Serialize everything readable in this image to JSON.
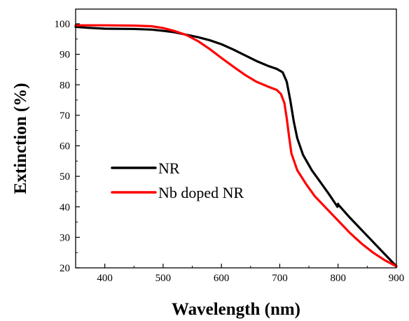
{
  "chart_data": {
    "type": "line",
    "title": "",
    "xlabel": "Wavelength (nm)",
    "ylabel": "Extinction (%)",
    "xlim": [
      350,
      900
    ],
    "ylim": [
      20,
      105
    ],
    "x_ticks": [
      400,
      500,
      600,
      700,
      800,
      900
    ],
    "y_ticks": [
      20,
      30,
      40,
      50,
      60,
      70,
      80,
      90,
      100
    ],
    "grid": false,
    "legend_position": "center-left",
    "series": [
      {
        "name": "NR",
        "color": "#000000",
        "points": [
          [
            350,
            99.0
          ],
          [
            370,
            98.7
          ],
          [
            400,
            98.4
          ],
          [
            450,
            98.3
          ],
          [
            480,
            98.1
          ],
          [
            500,
            97.7
          ],
          [
            520,
            97.2
          ],
          [
            540,
            96.4
          ],
          [
            560,
            95.6
          ],
          [
            580,
            94.6
          ],
          [
            600,
            93.3
          ],
          [
            620,
            91.6
          ],
          [
            640,
            89.7
          ],
          [
            660,
            87.8
          ],
          [
            680,
            86.2
          ],
          [
            695,
            85.2
          ],
          [
            705,
            84.1
          ],
          [
            712,
            81.0
          ],
          [
            718,
            75.0
          ],
          [
            724,
            68.0
          ],
          [
            730,
            62.5
          ],
          [
            740,
            57.0
          ],
          [
            755,
            52.0
          ],
          [
            770,
            48.0
          ],
          [
            785,
            44.0
          ],
          [
            799,
            40.0
          ],
          [
            800,
            41.0
          ],
          [
            801,
            40.6
          ],
          [
            820,
            36.5
          ],
          [
            840,
            32.5
          ],
          [
            860,
            28.5
          ],
          [
            880,
            24.5
          ],
          [
            900,
            20.5
          ]
        ]
      },
      {
        "name": "Nb doped NR",
        "color": "#ff0000",
        "points": [
          [
            350,
            99.5
          ],
          [
            400,
            99.5
          ],
          [
            450,
            99.4
          ],
          [
            480,
            99.2
          ],
          [
            500,
            98.6
          ],
          [
            520,
            97.6
          ],
          [
            540,
            96.3
          ],
          [
            560,
            94.3
          ],
          [
            580,
            91.7
          ],
          [
            600,
            88.8
          ],
          [
            620,
            86.0
          ],
          [
            640,
            83.3
          ],
          [
            660,
            81.0
          ],
          [
            680,
            79.4
          ],
          [
            695,
            78.3
          ],
          [
            702,
            77.0
          ],
          [
            708,
            74.0
          ],
          [
            712,
            69.0
          ],
          [
            716,
            63.0
          ],
          [
            720,
            57.5
          ],
          [
            730,
            52.0
          ],
          [
            745,
            47.5
          ],
          [
            760,
            43.5
          ],
          [
            780,
            39.5
          ],
          [
            800,
            35.5
          ],
          [
            820,
            31.5
          ],
          [
            840,
            28.0
          ],
          [
            860,
            25.0
          ],
          [
            880,
            22.5
          ],
          [
            900,
            20.5
          ]
        ]
      }
    ]
  }
}
